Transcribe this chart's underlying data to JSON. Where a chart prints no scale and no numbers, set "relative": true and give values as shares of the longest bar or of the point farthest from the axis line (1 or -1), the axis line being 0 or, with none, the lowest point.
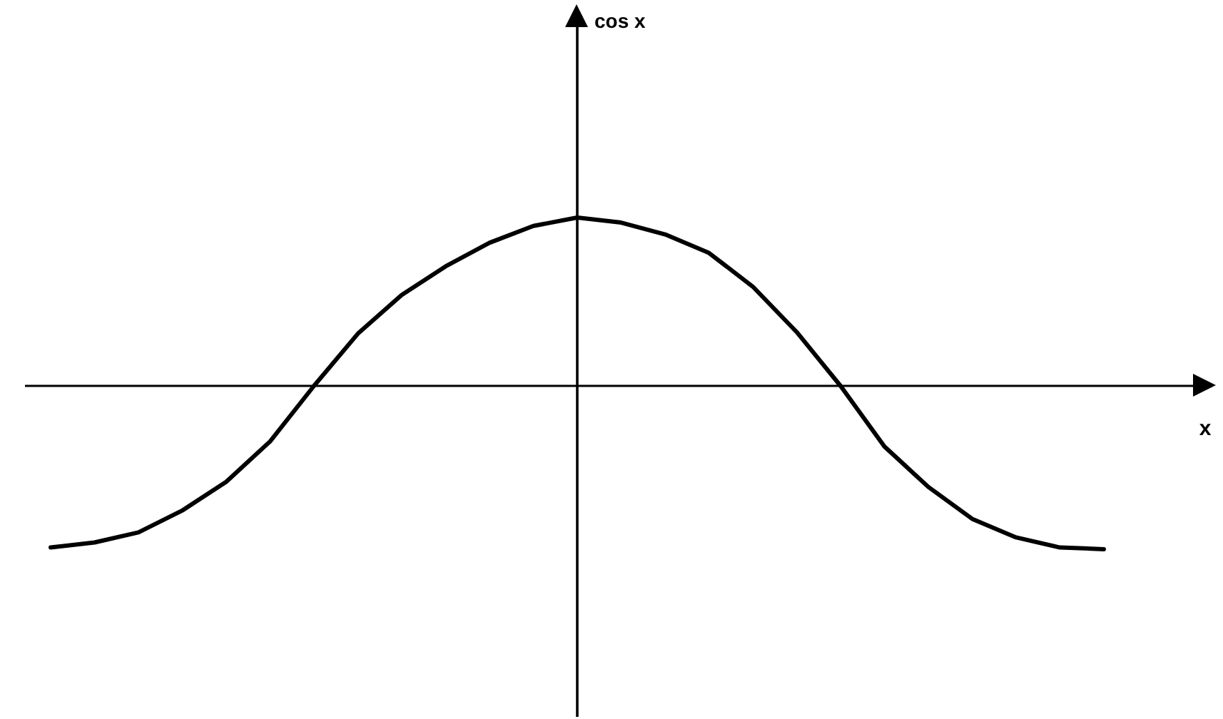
{
  "chart_data": {
    "type": "line",
    "xlabel": "x",
    "annotations": [
      "cos x"
    ],
    "categories": [
      null,
      null,
      null,
      null,
      null,
      null,
      null,
      null,
      null,
      null,
      null,
      null,
      null,
      null,
      null,
      null,
      null,
      null,
      null,
      null,
      null,
      null,
      null,
      null,
      null
    ],
    "relative": true,
    "series": [
      {
        "color": "#000000",
        "values": [
          -0.96,
          -0.93,
          -0.87,
          -0.74,
          -0.57,
          -0.33,
          0,
          0.31,
          0.54,
          0.71,
          0.85,
          0.95,
          1,
          0.97,
          0.9,
          0.79,
          0.59,
          0.32,
          0,
          -0.36,
          -0.6,
          -0.79,
          -0.9,
          -0.96,
          -0.97
        ]
      }
    ],
    "grid": false,
    "tick_labels": false,
    "marker": "none",
    "line_style": "solid"
  }
}
